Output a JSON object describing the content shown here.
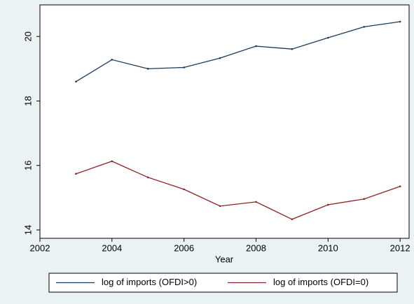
{
  "chart_data": {
    "type": "line",
    "x_label": "Year",
    "x": [
      2003,
      2004,
      2005,
      2006,
      2007,
      2008,
      2009,
      2010,
      2011,
      2012
    ],
    "series": [
      {
        "name": "log of imports (OFDI>0)",
        "color": "#1a3a5c",
        "values": [
          18.6,
          19.28,
          19.0,
          19.04,
          19.33,
          19.7,
          19.61,
          19.96,
          20.3,
          20.46
        ]
      },
      {
        "name": "log of imports (OFDI=0)",
        "color": "#8b2323",
        "values": [
          15.74,
          16.13,
          15.63,
          15.26,
          14.74,
          14.87,
          14.33,
          14.78,
          14.96,
          15.35
        ]
      }
    ],
    "xlim": [
      2002,
      2012.25
    ],
    "xticks": [
      2002,
      2004,
      2006,
      2008,
      2010,
      2012
    ],
    "ylim": [
      13.74,
      20.98
    ],
    "yticks": [
      14,
      16,
      18,
      20
    ],
    "legend": "bottom"
  }
}
